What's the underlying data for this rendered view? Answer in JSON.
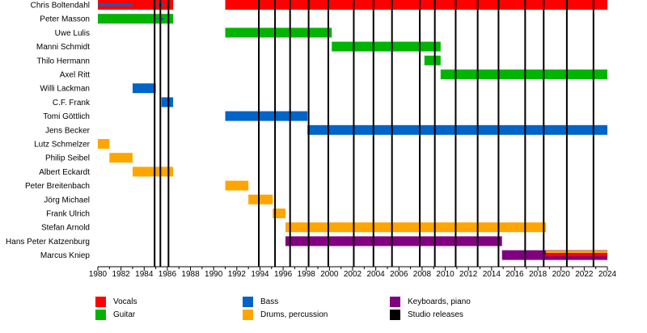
{
  "chart_data": {
    "type": "timeline",
    "xlim": [
      1980,
      2024
    ],
    "tick_labels": [
      "1980",
      "1982",
      "1984",
      "1986",
      "1988",
      "1990",
      "1992",
      "1994",
      "1996",
      "1998",
      "2000",
      "2002",
      "2004",
      "2006",
      "2008",
      "2010",
      "2012",
      "2014",
      "2016",
      "2018",
      "2020",
      "2022",
      "2024"
    ],
    "members": [
      "Chris Boltendahl",
      "Peter Masson",
      "Uwe Lulis",
      "Manni Schmidt",
      "Thilo Hermann",
      "Axel Ritt",
      "Willi Lackman",
      "C.F. Frank",
      "Tomi Göttlich",
      "Jens Becker",
      "Lutz Schmelzer",
      "Philip Seibel",
      "Albert Eckardt",
      "Peter Breitenbach",
      "Jörg Michael",
      "Frank Ulrich",
      "Stefan Arnold",
      "Hans Peter Katzenburg",
      "Marcus Kniep"
    ],
    "colors": {
      "vocals": "#ff0000",
      "guitar": "#00b400",
      "bass": "#0064c8",
      "drums": "#ffa500",
      "keyboards": "#800080",
      "releases": "#000000"
    },
    "bars": [
      {
        "member": 0,
        "role": "vocals",
        "start": 1980.0,
        "end": 1986.5
      },
      {
        "member": 0,
        "role": "vocals",
        "start": 1991.0,
        "end": 2024.0
      },
      {
        "member": 0,
        "role": "bass",
        "start": 1980.0,
        "end": 1983.0,
        "thin": true
      },
      {
        "member": 0,
        "role": "bass",
        "start": 1985.2,
        "end": 1985.7,
        "thin": true
      },
      {
        "member": 1,
        "role": "guitar",
        "start": 1980.0,
        "end": 1986.5
      },
      {
        "member": 1,
        "role": "bass",
        "start": 1985.2,
        "end": 1985.7,
        "thin": true
      },
      {
        "member": 2,
        "role": "guitar",
        "start": 1991.0,
        "end": 2000.2
      },
      {
        "member": 3,
        "role": "guitar",
        "start": 2000.2,
        "end": 2009.6
      },
      {
        "member": 4,
        "role": "guitar",
        "start": 2008.2,
        "end": 2009.6
      },
      {
        "member": 5,
        "role": "guitar",
        "start": 2009.6,
        "end": 2024.0
      },
      {
        "member": 6,
        "role": "bass",
        "start": 1983.0,
        "end": 1985.0
      },
      {
        "member": 7,
        "role": "bass",
        "start": 1985.5,
        "end": 1986.5
      },
      {
        "member": 8,
        "role": "bass",
        "start": 1991.0,
        "end": 1998.1
      },
      {
        "member": 9,
        "role": "bass",
        "start": 1998.1,
        "end": 2024.0
      },
      {
        "member": 10,
        "role": "drums",
        "start": 1980.0,
        "end": 1981.0
      },
      {
        "member": 11,
        "role": "drums",
        "start": 1981.0,
        "end": 1983.0
      },
      {
        "member": 12,
        "role": "drums",
        "start": 1983.0,
        "end": 1986.5
      },
      {
        "member": 13,
        "role": "drums",
        "start": 1991.0,
        "end": 1993.0
      },
      {
        "member": 14,
        "role": "drums",
        "start": 1993.0,
        "end": 1995.1
      },
      {
        "member": 15,
        "role": "drums",
        "start": 1995.1,
        "end": 1996.2
      },
      {
        "member": 16,
        "role": "drums",
        "start": 1996.2,
        "end": 2018.7
      },
      {
        "member": 17,
        "role": "keyboards",
        "start": 1996.2,
        "end": 2014.9
      },
      {
        "member": 18,
        "role": "keyboards",
        "start": 2014.9,
        "end": 2024.0
      },
      {
        "member": 18,
        "role": "drums",
        "start": 2018.7,
        "end": 2024.0,
        "thin": true,
        "offset": -4
      },
      {
        "member": 18,
        "role": "vocals",
        "start": 2018.7,
        "end": 2024.0,
        "thin": true,
        "offset": 0
      }
    ],
    "releases": [
      1984.9,
      1985.4,
      1986.1,
      1993.9,
      1995.3,
      1996.6,
      1998.2,
      1999.9,
      2002.1,
      2003.8,
      2005.4,
      2007.8,
      2009.1,
      2010.9,
      2012.8,
      2014.6,
      2016.9,
      2018.5,
      2020.5,
      2022.8
    ]
  },
  "legend": [
    {
      "key": "vocals",
      "label": "Vocals"
    },
    {
      "key": "bass",
      "label": "Bass"
    },
    {
      "key": "keyboards",
      "label": "Keyboards, piano"
    },
    {
      "key": "guitar",
      "label": "Guitar"
    },
    {
      "key": "drums",
      "label": "Drums, percussion"
    },
    {
      "key": "releases",
      "label": "Studio releases"
    }
  ]
}
